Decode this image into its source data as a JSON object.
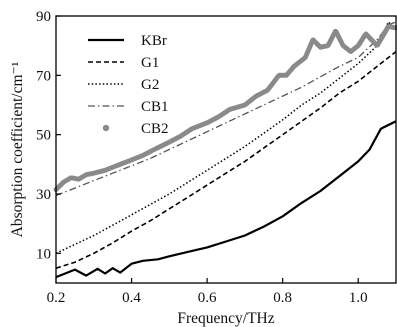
{
  "chart_data": {
    "type": "line",
    "xlabel": "Frequency/THz",
    "ylabel": "Absorption coefficient/cm⁻¹",
    "xlim": [
      0.2,
      1.1
    ],
    "ylim": [
      0,
      90
    ],
    "xticks": [
      0.2,
      0.4,
      0.6,
      0.8,
      1.0
    ],
    "yticks": [
      10,
      30,
      50,
      70,
      90
    ],
    "grid": false,
    "legend_position": "top-left",
    "series": [
      {
        "name": "KBr",
        "style": "solid",
        "color": "#000000",
        "points": [
          [
            0.2,
            2.0
          ],
          [
            0.22,
            3.0
          ],
          [
            0.25,
            4.5
          ],
          [
            0.28,
            2.5
          ],
          [
            0.31,
            4.8
          ],
          [
            0.33,
            3.2
          ],
          [
            0.35,
            5.0
          ],
          [
            0.37,
            3.5
          ],
          [
            0.4,
            6.5
          ],
          [
            0.43,
            7.5
          ],
          [
            0.47,
            8.0
          ],
          [
            0.5,
            9.0
          ],
          [
            0.55,
            10.5
          ],
          [
            0.6,
            12.0
          ],
          [
            0.65,
            14.0
          ],
          [
            0.7,
            16.0
          ],
          [
            0.75,
            19.0
          ],
          [
            0.8,
            22.5
          ],
          [
            0.85,
            27.0
          ],
          [
            0.9,
            31.0
          ],
          [
            0.95,
            36.0
          ],
          [
            1.0,
            41.0
          ],
          [
            1.03,
            45.0
          ],
          [
            1.06,
            52.0
          ],
          [
            1.1,
            54.5
          ]
        ]
      },
      {
        "name": "G1",
        "style": "dashed",
        "color": "#000000",
        "points": [
          [
            0.2,
            5.0
          ],
          [
            0.25,
            7.0
          ],
          [
            0.3,
            10.0
          ],
          [
            0.35,
            13.5
          ],
          [
            0.4,
            17.5
          ],
          [
            0.45,
            21.0
          ],
          [
            0.5,
            25.0
          ],
          [
            0.55,
            29.0
          ],
          [
            0.6,
            33.0
          ],
          [
            0.65,
            37.0
          ],
          [
            0.7,
            41.0
          ],
          [
            0.75,
            45.5
          ],
          [
            0.8,
            50.0
          ],
          [
            0.85,
            54.5
          ],
          [
            0.9,
            59.0
          ],
          [
            0.95,
            64.0
          ],
          [
            1.0,
            68.0
          ],
          [
            1.05,
            73.0
          ],
          [
            1.1,
            78.0
          ]
        ]
      },
      {
        "name": "G2",
        "style": "dotted",
        "color": "#000000",
        "points": [
          [
            0.2,
            10.0
          ],
          [
            0.25,
            13.0
          ],
          [
            0.3,
            16.0
          ],
          [
            0.35,
            19.5
          ],
          [
            0.4,
            23.0
          ],
          [
            0.45,
            26.5
          ],
          [
            0.5,
            30.0
          ],
          [
            0.55,
            34.0
          ],
          [
            0.6,
            38.0
          ],
          [
            0.65,
            42.0
          ],
          [
            0.7,
            46.0
          ],
          [
            0.75,
            50.5
          ],
          [
            0.8,
            55.0
          ],
          [
            0.85,
            60.0
          ],
          [
            0.9,
            64.0
          ],
          [
            0.95,
            69.0
          ],
          [
            1.0,
            74.0
          ],
          [
            1.05,
            80.0
          ],
          [
            1.08,
            88.0
          ],
          [
            1.1,
            85.0
          ]
        ]
      },
      {
        "name": "CB1",
        "style": "dash-dot",
        "color": "#555555",
        "points": [
          [
            0.2,
            29.5
          ],
          [
            0.25,
            32.0
          ],
          [
            0.3,
            34.5
          ],
          [
            0.35,
            37.0
          ],
          [
            0.4,
            39.5
          ],
          [
            0.45,
            42.0
          ],
          [
            0.5,
            45.0
          ],
          [
            0.55,
            48.0
          ],
          [
            0.6,
            51.0
          ],
          [
            0.65,
            54.0
          ],
          [
            0.7,
            57.0
          ],
          [
            0.75,
            60.0
          ],
          [
            0.8,
            63.0
          ],
          [
            0.85,
            66.0
          ],
          [
            0.9,
            69.5
          ],
          [
            0.95,
            73.0
          ],
          [
            1.0,
            76.0
          ],
          [
            1.05,
            82.0
          ],
          [
            1.08,
            87.0
          ],
          [
            1.1,
            88.0
          ]
        ]
      },
      {
        "name": "CB2",
        "style": "thick-dots",
        "color": "#8a8a8a",
        "points": [
          [
            0.2,
            31.5
          ],
          [
            0.22,
            34.0
          ],
          [
            0.24,
            35.5
          ],
          [
            0.26,
            35.0
          ],
          [
            0.28,
            36.5
          ],
          [
            0.3,
            37.0
          ],
          [
            0.33,
            38.0
          ],
          [
            0.36,
            39.5
          ],
          [
            0.4,
            41.5
          ],
          [
            0.43,
            43.0
          ],
          [
            0.46,
            45.0
          ],
          [
            0.5,
            47.5
          ],
          [
            0.53,
            49.5
          ],
          [
            0.56,
            52.0
          ],
          [
            0.6,
            54.0
          ],
          [
            0.63,
            56.0
          ],
          [
            0.66,
            58.5
          ],
          [
            0.7,
            60.0
          ],
          [
            0.73,
            63.0
          ],
          [
            0.76,
            65.0
          ],
          [
            0.79,
            70.0
          ],
          [
            0.81,
            70.0
          ],
          [
            0.83,
            73.0
          ],
          [
            0.86,
            76.0
          ],
          [
            0.88,
            82.0
          ],
          [
            0.9,
            79.5
          ],
          [
            0.92,
            80.0
          ],
          [
            0.94,
            85.0
          ],
          [
            0.96,
            80.0
          ],
          [
            0.98,
            78.0
          ],
          [
            1.0,
            80.0
          ],
          [
            1.02,
            84.0
          ],
          [
            1.05,
            80.0
          ],
          [
            1.08,
            86.5
          ],
          [
            1.1,
            86.0
          ]
        ]
      }
    ]
  }
}
